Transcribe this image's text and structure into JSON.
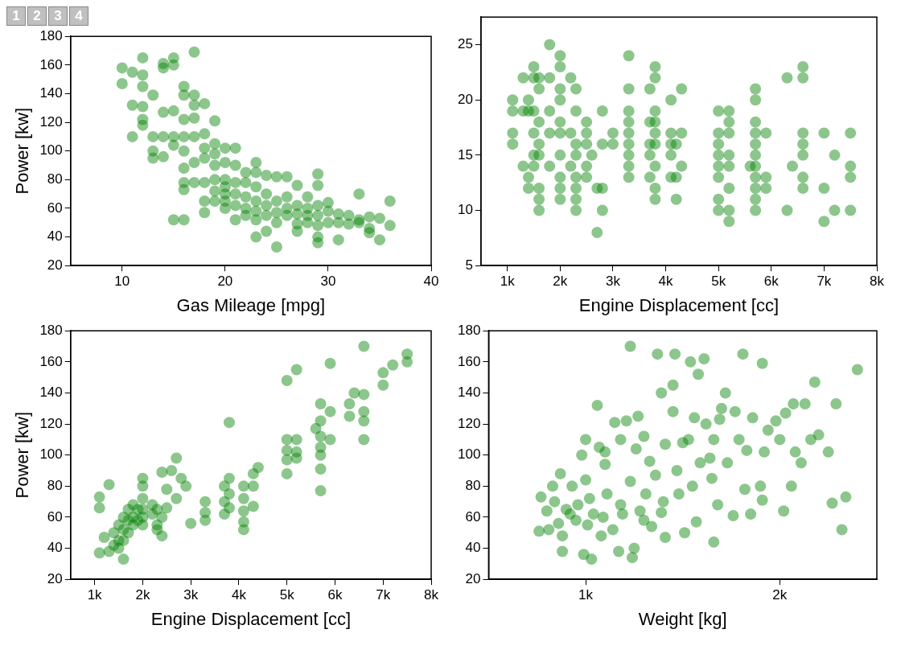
{
  "chart_data": [
    {
      "type": "scatter",
      "annotations": [
        "1",
        "2",
        "3",
        "4"
      ],
      "xlabel": "Gas Mileage [mpg]",
      "ylabel": "Power [kw]",
      "color": "#008000",
      "marker": "circle",
      "grid": false,
      "xlim": [
        5,
        40
      ],
      "xticks": [
        10,
        20,
        30,
        40
      ],
      "ylim": [
        20,
        180
      ],
      "yticks": [
        20,
        40,
        60,
        80,
        100,
        120,
        140,
        160,
        180
      ],
      "x": [
        10,
        10,
        11,
        11,
        11,
        12,
        12,
        12,
        12,
        12,
        12,
        13,
        13,
        13,
        13,
        14,
        14,
        14,
        14,
        14,
        15,
        15,
        15,
        15,
        15,
        15,
        16,
        16,
        16,
        16,
        16,
        16,
        16,
        16,
        16,
        17,
        17,
        17,
        17,
        17,
        17,
        17,
        18,
        18,
        18,
        18,
        18,
        18,
        18,
        19,
        19,
        19,
        19,
        19,
        19,
        19,
        20,
        20,
        20,
        20,
        20,
        20,
        20,
        21,
        21,
        21,
        21,
        21,
        21,
        22,
        22,
        22,
        22,
        22,
        23,
        23,
        23,
        23,
        23,
        23,
        23,
        24,
        24,
        24,
        24,
        24,
        25,
        25,
        25,
        25,
        25,
        26,
        26,
        26,
        26,
        27,
        27,
        27,
        27,
        27,
        28,
        28,
        28,
        28,
        29,
        29,
        29,
        29,
        29,
        29,
        29,
        30,
        30,
        30,
        31,
        31,
        31,
        32,
        32,
        33,
        33,
        33,
        34,
        34,
        34,
        35,
        35,
        36,
        36
      ],
      "values": [
        158,
        147,
        155,
        132,
        110,
        165,
        153,
        145,
        131,
        122,
        118,
        139,
        110,
        100,
        95,
        161,
        158,
        127,
        110,
        96,
        165,
        160,
        128,
        110,
        104,
        52,
        145,
        139,
        122,
        110,
        100,
        88,
        78,
        73,
        52,
        169,
        139,
        132,
        123,
        110,
        92,
        78,
        133,
        112,
        102,
        95,
        78,
        65,
        57,
        121,
        105,
        98,
        90,
        80,
        72,
        65,
        102,
        92,
        80,
        75,
        70,
        65,
        60,
        102,
        90,
        78,
        70,
        62,
        52,
        85,
        78,
        68,
        60,
        55,
        92,
        85,
        75,
        65,
        58,
        52,
        40,
        83,
        70,
        62,
        55,
        44,
        82,
        65,
        57,
        50,
        33,
        82,
        68,
        60,
        55,
        76,
        62,
        56,
        49,
        44,
        68,
        60,
        55,
        50,
        84,
        76,
        62,
        55,
        48,
        40,
        36,
        64,
        58,
        50,
        56,
        50,
        38,
        55,
        49,
        70,
        52,
        50,
        54,
        46,
        43,
        53,
        38,
        65,
        48
      ]
    },
    {
      "type": "scatter",
      "xlabel": "Engine Displacement [cc]",
      "color": "#008000",
      "marker": "circle",
      "grid": false,
      "xlim": [
        500,
        8000
      ],
      "xticks": [
        {
          "value": 1000,
          "label": "1k"
        },
        {
          "value": 2000,
          "label": "2k"
        },
        {
          "value": 3000,
          "label": "3k"
        },
        {
          "value": 4000,
          "label": "4k"
        },
        {
          "value": 5000,
          "label": "5k"
        },
        {
          "value": 6000,
          "label": "6k"
        },
        {
          "value": 7000,
          "label": "7k"
        },
        {
          "value": 8000,
          "label": "8k"
        }
      ],
      "ylim": [
        5,
        27.5
      ],
      "yticks": [
        5,
        10,
        15,
        20,
        25
      ],
      "x": [
        1100,
        1100,
        1100,
        1100,
        1300,
        1300,
        1300,
        1400,
        1400,
        1400,
        1400,
        1500,
        1500,
        1500,
        1500,
        1500,
        1500,
        1600,
        1600,
        1600,
        1600,
        1600,
        1600,
        1600,
        1600,
        1800,
        1800,
        1800,
        1800,
        1800,
        2000,
        2000,
        2000,
        2000,
        2000,
        2000,
        2000,
        2000,
        2000,
        2000,
        2200,
        2200,
        2200,
        2300,
        2300,
        2300,
        2300,
        2300,
        2300,
        2300,
        2300,
        2500,
        2500,
        2500,
        2500,
        2500,
        2600,
        2700,
        2700,
        2800,
        2800,
        2800,
        2800,
        3000,
        3000,
        3300,
        3300,
        3300,
        3300,
        3300,
        3300,
        3300,
        3300,
        3300,
        3700,
        3700,
        3700,
        3700,
        3700,
        3800,
        3800,
        3800,
        3800,
        3800,
        3800,
        3800,
        3800,
        3800,
        4100,
        4100,
        4100,
        4100,
        4100,
        4200,
        4200,
        4200,
        4300,
        4300,
        4300,
        5000,
        5000,
        5000,
        5000,
        5000,
        5000,
        5000,
        5000,
        5200,
        5200,
        5200,
        5200,
        5200,
        5200,
        5200,
        5200,
        5600,
        5700,
        5700,
        5700,
        5700,
        5700,
        5700,
        5700,
        5700,
        5700,
        5700,
        5700,
        5900,
        5900,
        5900,
        6300,
        6300,
        6400,
        6600,
        6600,
        6600,
        6600,
        6600,
        6600,
        6600,
        7000,
        7000,
        7000,
        7200,
        7200,
        7500,
        7500,
        7500,
        7500
      ],
      "values": [
        20,
        19,
        17,
        16,
        22,
        19,
        14,
        20,
        19,
        13,
        12,
        23,
        22,
        19,
        17,
        15,
        14,
        22,
        21,
        18,
        16,
        15,
        12,
        11,
        10,
        25,
        22,
        19,
        17,
        14,
        24,
        23,
        21,
        20,
        18,
        17,
        15,
        13,
        12,
        11,
        22,
        17,
        14,
        21,
        19,
        16,
        15,
        13,
        12,
        11,
        10,
        18,
        17,
        16,
        14,
        13,
        15,
        12,
        8,
        19,
        16,
        12,
        10,
        17,
        16,
        24,
        21,
        19,
        18,
        17,
        16,
        15,
        14,
        13,
        21,
        18,
        16,
        15,
        13,
        23,
        22,
        19,
        18,
        17,
        16,
        14,
        12,
        11,
        20,
        17,
        16,
        15,
        13,
        16,
        13,
        11,
        21,
        17,
        14,
        19,
        17,
        16,
        15,
        14,
        13,
        11,
        10,
        19,
        18,
        17,
        15,
        14,
        12,
        10,
        9,
        14,
        21,
        20,
        18,
        17,
        16,
        15,
        14,
        13,
        12,
        11,
        10,
        17,
        13,
        12,
        22,
        10,
        14,
        23,
        22,
        17,
        16,
        15,
        13,
        12,
        17,
        12,
        9,
        15,
        10,
        17,
        14,
        13,
        10
      ]
    },
    {
      "type": "scatter",
      "xlabel": "Engine Displacement [cc]",
      "ylabel": "Power [kw]",
      "color": "#008000",
      "marker": "circle",
      "grid": false,
      "xlim": [
        500,
        8000
      ],
      "xticks": [
        {
          "value": 1000,
          "label": "1k"
        },
        {
          "value": 2000,
          "label": "2k"
        },
        {
          "value": 3000,
          "label": "3k"
        },
        {
          "value": 4000,
          "label": "4k"
        },
        {
          "value": 5000,
          "label": "5k"
        },
        {
          "value": 6000,
          "label": "6k"
        },
        {
          "value": 7000,
          "label": "7k"
        },
        {
          "value": 8000,
          "label": "8k"
        }
      ],
      "ylim": [
        20,
        180
      ],
      "yticks": [
        20,
        40,
        60,
        80,
        100,
        120,
        140,
        160,
        180
      ],
      "x": [
        1100,
        1100,
        1100,
        1200,
        1300,
        1300,
        1400,
        1400,
        1500,
        1500,
        1500,
        1600,
        1600,
        1600,
        1600,
        1700,
        1700,
        1700,
        1800,
        1800,
        1800,
        1900,
        1900,
        2000,
        2000,
        2000,
        2000,
        2000,
        2000,
        2200,
        2200,
        2300,
        2300,
        2300,
        2400,
        2400,
        2400,
        2500,
        2500,
        2600,
        2700,
        2700,
        2800,
        2900,
        3000,
        3300,
        3300,
        3300,
        3700,
        3700,
        3700,
        3800,
        3800,
        3800,
        3800,
        4100,
        4100,
        4100,
        4100,
        4100,
        4300,
        4300,
        4300,
        4400,
        5000,
        5000,
        5000,
        5000,
        5000,
        5200,
        5200,
        5200,
        5200,
        5600,
        5700,
        5700,
        5700,
        5700,
        5700,
        5700,
        5700,
        5900,
        5900,
        5900,
        6300,
        6300,
        6400,
        6600,
        6600,
        6600,
        6600,
        6600,
        7000,
        7000,
        7200,
        7500,
        7500
      ],
      "values": [
        73,
        66,
        37,
        47,
        81,
        38,
        50,
        42,
        55,
        45,
        40,
        60,
        52,
        45,
        33,
        65,
        58,
        50,
        68,
        60,
        55,
        65,
        58,
        85,
        80,
        72,
        65,
        60,
        55,
        68,
        62,
        65,
        55,
        52,
        89,
        60,
        48,
        78,
        66,
        90,
        98,
        72,
        85,
        80,
        56,
        70,
        63,
        58,
        80,
        70,
        62,
        121,
        85,
        75,
        66,
        80,
        72,
        64,
        57,
        52,
        88,
        80,
        67,
        92,
        110,
        103,
        97,
        88,
        148,
        155,
        110,
        102,
        98,
        117,
        133,
        122,
        112,
        105,
        100,
        91,
        77,
        159,
        128,
        110,
        133,
        125,
        140,
        170,
        139,
        128,
        122,
        110,
        153,
        145,
        158,
        165,
        160
      ]
    },
    {
      "type": "scatter",
      "xlabel": "Weight [kg]",
      "color": "#008000",
      "marker": "circle",
      "grid": false,
      "xlim": [
        500,
        2500
      ],
      "xticks": [
        {
          "value": 1000,
          "label": "1k"
        },
        {
          "value": 2000,
          "label": "2k"
        }
      ],
      "ylim": [
        20,
        180
      ],
      "yticks": [
        20,
        40,
        60,
        80,
        100,
        120,
        140,
        160,
        180
      ],
      "x": [
        760,
        770,
        800,
        810,
        830,
        840,
        860,
        870,
        880,
        880,
        900,
        920,
        930,
        950,
        960,
        980,
        990,
        1000,
        1000,
        1010,
        1020,
        1030,
        1040,
        1060,
        1070,
        1080,
        1090,
        1100,
        1100,
        1110,
        1140,
        1150,
        1170,
        1180,
        1180,
        1190,
        1210,
        1230,
        1230,
        1240,
        1250,
        1260,
        1270,
        1280,
        1300,
        1300,
        1310,
        1330,
        1340,
        1360,
        1370,
        1390,
        1390,
        1400,
        1410,
        1410,
        1450,
        1450,
        1460,
        1470,
        1480,
        1500,
        1510,
        1530,
        1540,
        1550,
        1560,
        1570,
        1580,
        1590,
        1610,
        1620,
        1640,
        1650,
        1660,
        1660,
        1680,
        1690,
        1700,
        1720,
        1730,
        1760,
        1770,
        1790,
        1810,
        1820,
        1830,
        1850,
        1860,
        1900,
        1910,
        1910,
        1920,
        1940,
        1980,
        2000,
        2020,
        2030,
        2060,
        2070,
        2080,
        2110,
        2130,
        2160,
        2180,
        2200,
        2250,
        2270,
        2290,
        2320,
        2340,
        2400
      ],
      "values": [
        51,
        73,
        64,
        52,
        80,
        70,
        56,
        88,
        38,
        48,
        65,
        62,
        80,
        58,
        68,
        100,
        36,
        84,
        110,
        55,
        72,
        33,
        62,
        132,
        105,
        48,
        60,
        102,
        94,
        75,
        52,
        121,
        38,
        110,
        68,
        62,
        122,
        83,
        170,
        34,
        40,
        104,
        125,
        64,
        58,
        112,
        75,
        96,
        54,
        87,
        165,
        140,
        63,
        70,
        47,
        107,
        128,
        145,
        165,
        90,
        75,
        108,
        50,
        110,
        160,
        80,
        124,
        57,
        152,
        95,
        162,
        120,
        98,
        85,
        44,
        110,
        68,
        123,
        130,
        140,
        95,
        61,
        128,
        110,
        165,
        78,
        103,
        62,
        124,
        80,
        71,
        159,
        102,
        116,
        122,
        110,
        64,
        127,
        80,
        133,
        102,
        95,
        133,
        110,
        147,
        113,
        102,
        69,
        133,
        52,
        73,
        155
      ]
    }
  ]
}
